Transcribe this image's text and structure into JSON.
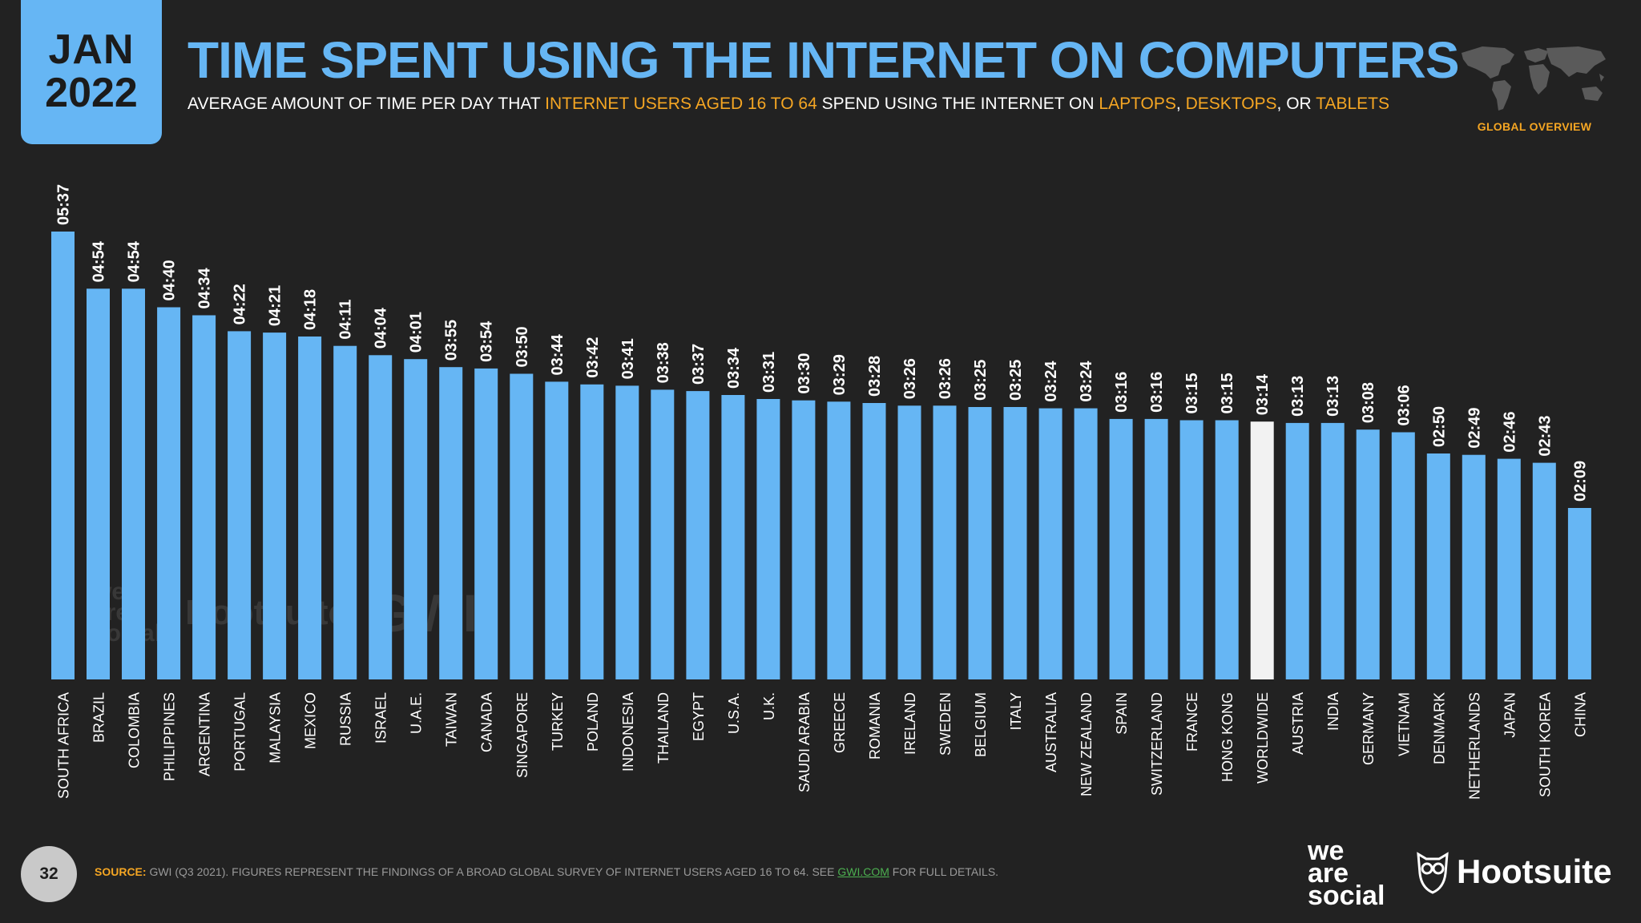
{
  "badge": {
    "month": "JAN",
    "year": "2022"
  },
  "header": {
    "title": "TIME SPENT USING THE INTERNET ON COMPUTERS",
    "subtitle_parts": [
      {
        "text": "AVERAGE AMOUNT OF TIME PER DAY THAT ",
        "highlight": false
      },
      {
        "text": "INTERNET USERS AGED 16 TO 64",
        "highlight": true
      },
      {
        "text": " SPEND USING THE INTERNET ON ",
        "highlight": false
      },
      {
        "text": "LAPTOPS",
        "highlight": true
      },
      {
        "text": ", ",
        "highlight": false
      },
      {
        "text": "DESKTOPS",
        "highlight": true
      },
      {
        "text": ", OR ",
        "highlight": false
      },
      {
        "text": "TABLETS",
        "highlight": true
      }
    ],
    "region_label": "GLOBAL OVERVIEW"
  },
  "colors": {
    "bar": "#66b6f4",
    "highlight_bar": "#f2f2f2",
    "accent": "#f5a623",
    "background": "#222222"
  },
  "chart_data": {
    "type": "bar",
    "title": "TIME SPENT USING THE INTERNET ON COMPUTERS",
    "unit": "hh:mm per day",
    "ylim_minutes": [
      0,
      337
    ],
    "highlight_category": "WORLDWIDE",
    "categories": [
      "SOUTH AFRICA",
      "BRAZIL",
      "COLOMBIA",
      "PHILIPPINES",
      "ARGENTINA",
      "PORTUGAL",
      "MALAYSIA",
      "MEXICO",
      "RUSSIA",
      "ISRAEL",
      "U.A.E.",
      "TAIWAN",
      "CANADA",
      "SINGAPORE",
      "TURKEY",
      "POLAND",
      "INDONESIA",
      "THAILAND",
      "EGYPT",
      "U.S.A.",
      "U.K.",
      "SAUDI ARABIA",
      "GREECE",
      "ROMANIA",
      "IRELAND",
      "SWEDEN",
      "BELGIUM",
      "ITALY",
      "AUSTRALIA",
      "NEW ZEALAND",
      "SPAIN",
      "SWITZERLAND",
      "FRANCE",
      "HONG KONG",
      "WORLDWIDE",
      "AUSTRIA",
      "INDIA",
      "GERMANY",
      "VIETNAM",
      "DENMARK",
      "NETHERLANDS",
      "JAPAN",
      "SOUTH KOREA",
      "CHINA"
    ],
    "labels": [
      "05:37",
      "04:54",
      "04:54",
      "04:40",
      "04:34",
      "04:22",
      "04:21",
      "04:18",
      "04:11",
      "04:04",
      "04:01",
      "03:55",
      "03:54",
      "03:50",
      "03:44",
      "03:42",
      "03:41",
      "03:38",
      "03:37",
      "03:34",
      "03:31",
      "03:30",
      "03:29",
      "03:28",
      "03:26",
      "03:26",
      "03:25",
      "03:25",
      "03:24",
      "03:24",
      "03:16",
      "03:16",
      "03:15",
      "03:15",
      "03:14",
      "03:13",
      "03:13",
      "03:08",
      "03:06",
      "02:50",
      "02:49",
      "02:46",
      "02:43",
      "02:09"
    ],
    "values_minutes": [
      337,
      294,
      294,
      280,
      274,
      262,
      261,
      258,
      251,
      244,
      241,
      235,
      234,
      230,
      224,
      222,
      221,
      218,
      217,
      214,
      211,
      210,
      209,
      208,
      206,
      206,
      205,
      205,
      204,
      204,
      196,
      196,
      195,
      195,
      194,
      193,
      193,
      188,
      186,
      170,
      169,
      166,
      163,
      129
    ]
  },
  "footer": {
    "slide_number": "32",
    "source_label": "SOURCE:",
    "source_text": " GWI (Q3 2021). FIGURES REPRESENT THE FINDINGS OF A BROAD GLOBAL SURVEY OF INTERNET USERS AGED 16 TO 64. SEE ",
    "source_link": "GWI.COM",
    "source_tail": " FOR FULL DETAILS.",
    "brand_we_are_social": [
      "we",
      "are",
      "social"
    ],
    "brand_hootsuite": "Hootsuite"
  }
}
